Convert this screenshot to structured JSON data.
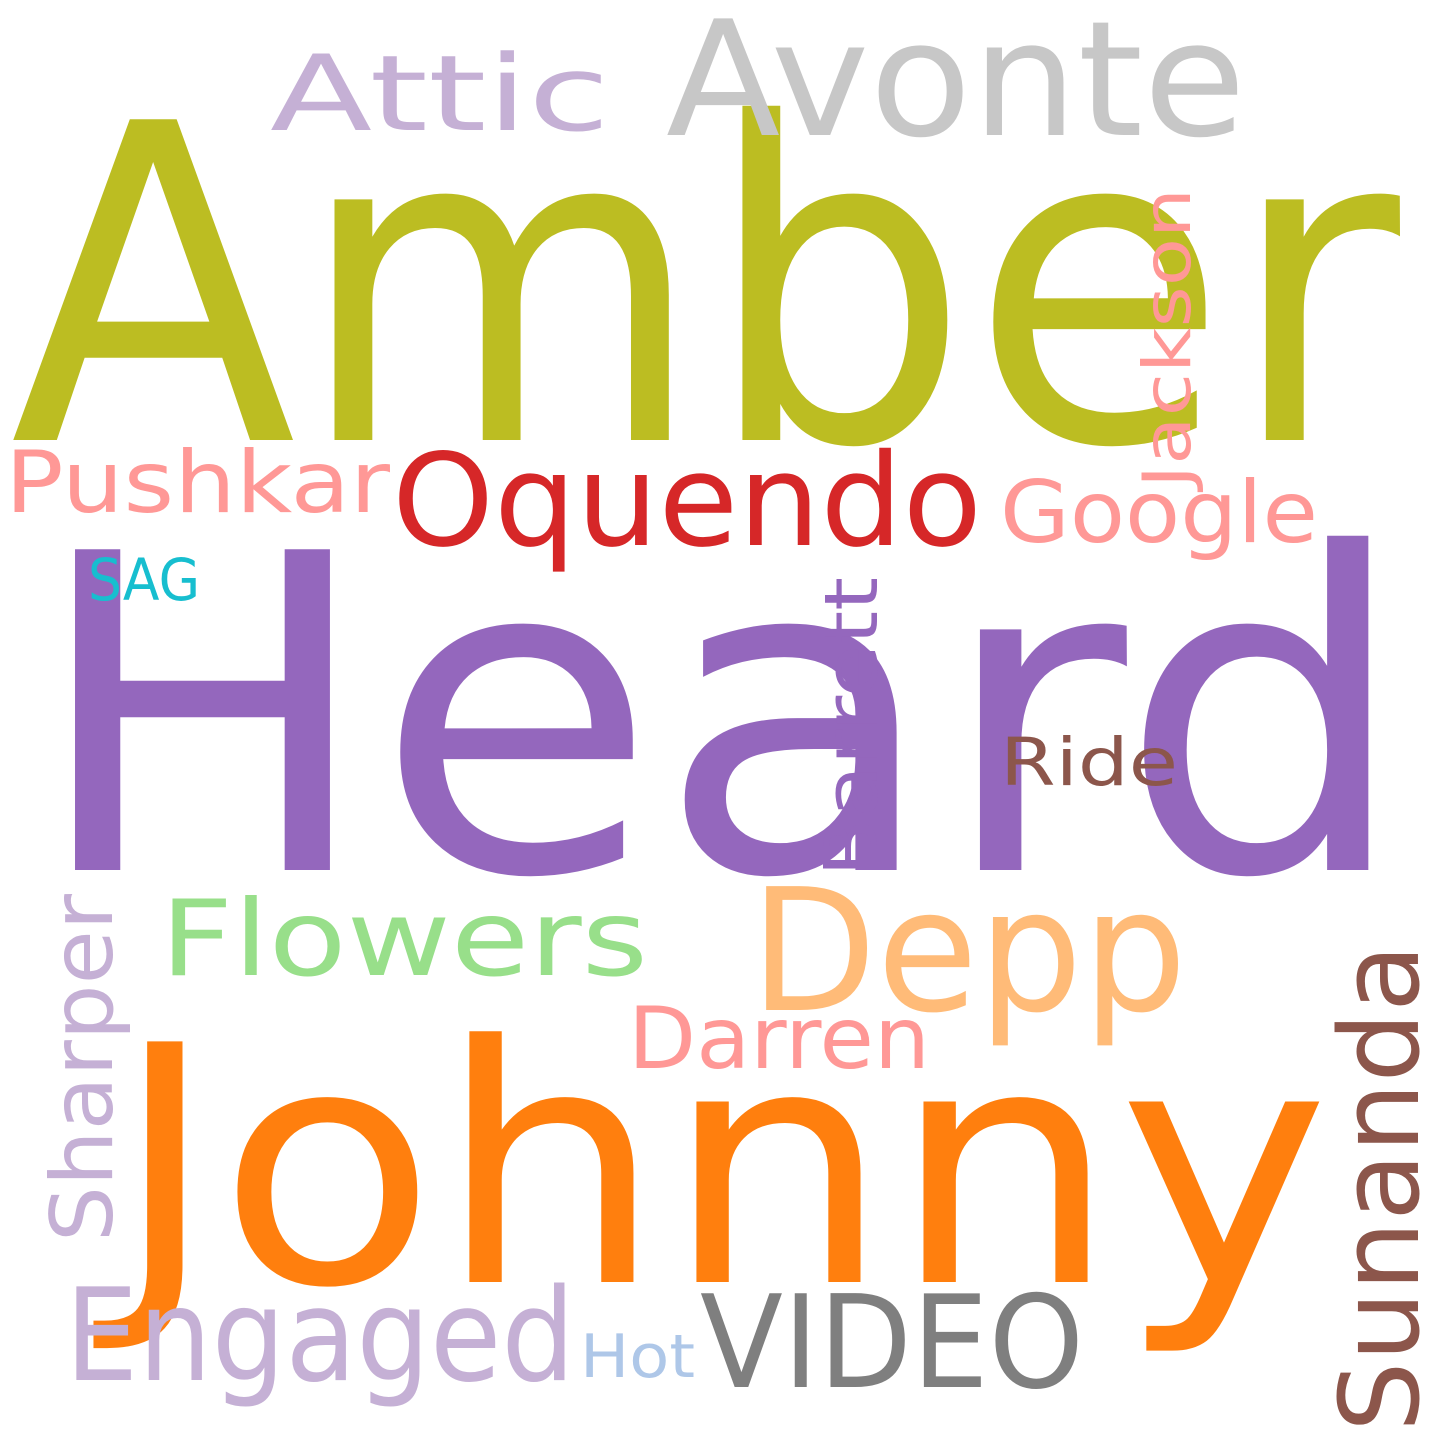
{
  "background": "#ffffff",
  "words": [
    {
      "id": "amber",
      "text": "Amber",
      "color": "#bcbd22"
    },
    {
      "id": "heard",
      "text": "Heard",
      "color": "#9467bd"
    },
    {
      "id": "johnny",
      "text": "Johnny",
      "color": "#ff7f0e"
    },
    {
      "id": "avonte",
      "text": "Avonte",
      "color": "#c7c7c7"
    },
    {
      "id": "attic",
      "text": "Attic",
      "color": "#c5b0d5"
    },
    {
      "id": "jackson",
      "text": "Jackson",
      "color": "#ff9896"
    },
    {
      "id": "pushkar",
      "text": "Pushkar",
      "color": "#ff9896"
    },
    {
      "id": "oquendo",
      "text": "Oquendo",
      "color": "#d62728"
    },
    {
      "id": "google",
      "text": "Google",
      "color": "#ff9896"
    },
    {
      "id": "sag",
      "text": "SAG",
      "color": "#17becf"
    },
    {
      "id": "barrett",
      "text": "Barrett",
      "color": "#9467bd"
    },
    {
      "id": "ride",
      "text": "Ride",
      "color": "#8c564b"
    },
    {
      "id": "flowers",
      "text": "Flowers",
      "color": "#98df8a"
    },
    {
      "id": "depp",
      "text": "Depp",
      "color": "#ffbb78"
    },
    {
      "id": "sharper",
      "text": "Sharper",
      "color": "#c5b0d5"
    },
    {
      "id": "darren",
      "text": "Darren",
      "color": "#ff9896"
    },
    {
      "id": "sunanda",
      "text": "Sunanda",
      "color": "#8c564b"
    },
    {
      "id": "engaged",
      "text": "Engaged",
      "color": "#c5b0d5"
    },
    {
      "id": "hot",
      "text": "Hot",
      "color": "#aec7e8"
    },
    {
      "id": "video",
      "text": "VIDEO",
      "color": "#7f7f7f"
    }
  ]
}
